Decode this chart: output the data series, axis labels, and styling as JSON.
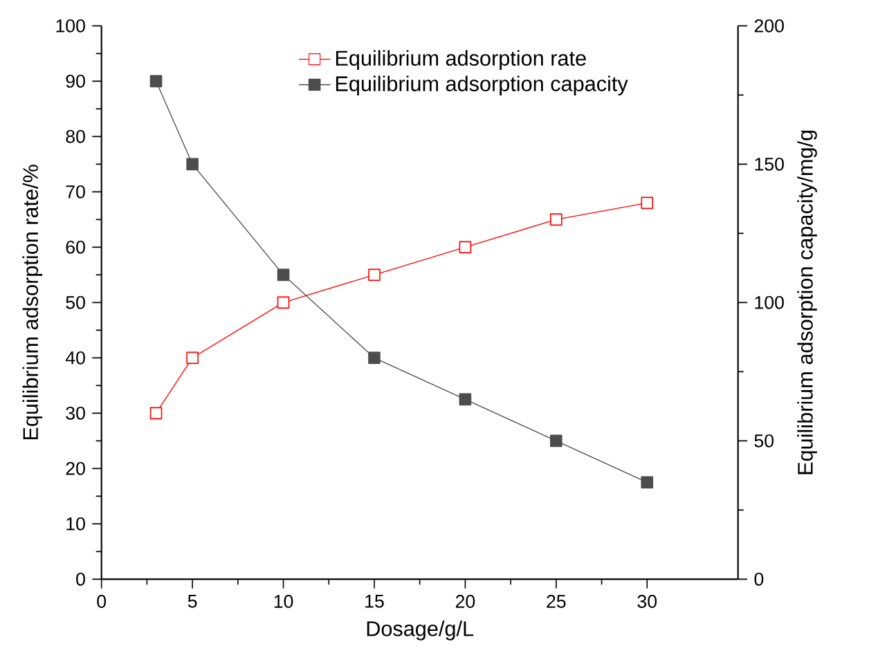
{
  "chart_data": {
    "type": "line",
    "xlabel": "Dosage/g/L",
    "ylabel": "Equilibrium adsorption rate/%",
    "y2label": "Equilibrium adsorption capacity/mg/g",
    "x": [
      3,
      5,
      10,
      15,
      20,
      25,
      30
    ],
    "series": [
      {
        "name": "Equilibrium adsorption rate",
        "color": "#ff0000",
        "values": [
          30,
          40,
          50,
          55,
          60,
          65,
          68
        ]
      },
      {
        "name": "Equilibrium adsorption capacity",
        "color": "#4d4d4d",
        "axis": "y2",
        "values": [
          180,
          150,
          110,
          80,
          65,
          50,
          35
        ]
      }
    ],
    "xlim": [
      0,
      35
    ],
    "xticks": [
      0,
      5,
      10,
      15,
      20,
      25,
      30
    ],
    "ylim": [
      0,
      100
    ],
    "yticks": [
      0,
      10,
      20,
      30,
      40,
      50,
      60,
      70,
      80,
      90,
      100
    ],
    "y2lim": [
      0,
      200
    ],
    "y2ticks": [
      0,
      50,
      100,
      150,
      200
    ],
    "marker": "square",
    "line_style": "solid",
    "legend": "top",
    "grid": false
  }
}
